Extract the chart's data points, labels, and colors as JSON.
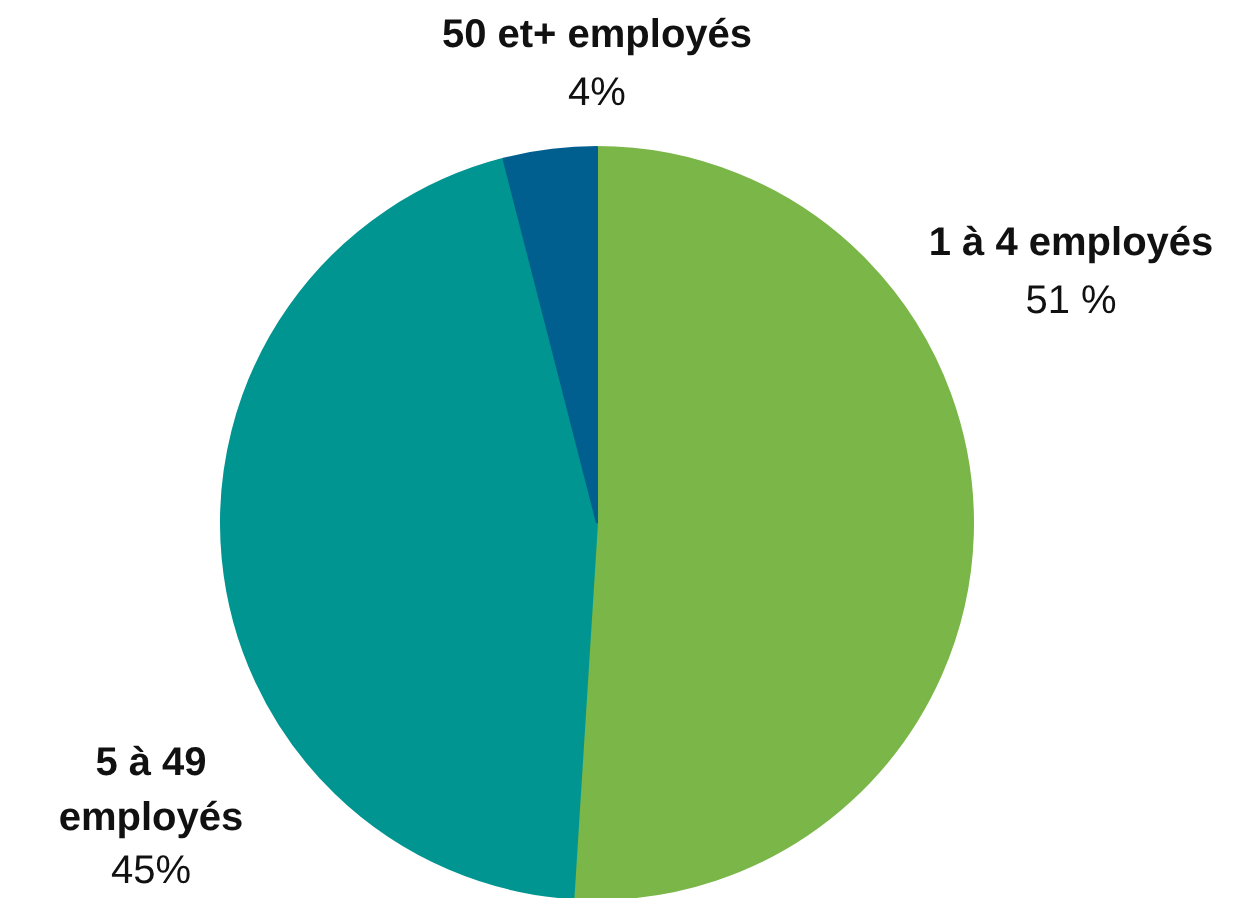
{
  "chart_data": {
    "type": "pie",
    "categories": [
      "1 à 4 employés",
      "5 à 49\nemployés",
      "50 et+ employés"
    ],
    "values": [
      51,
      45,
      4
    ],
    "value_labels": [
      "51 %",
      "45%",
      "4%"
    ],
    "colors": [
      "#7ab648",
      "#009591",
      "#005f8f"
    ]
  }
}
